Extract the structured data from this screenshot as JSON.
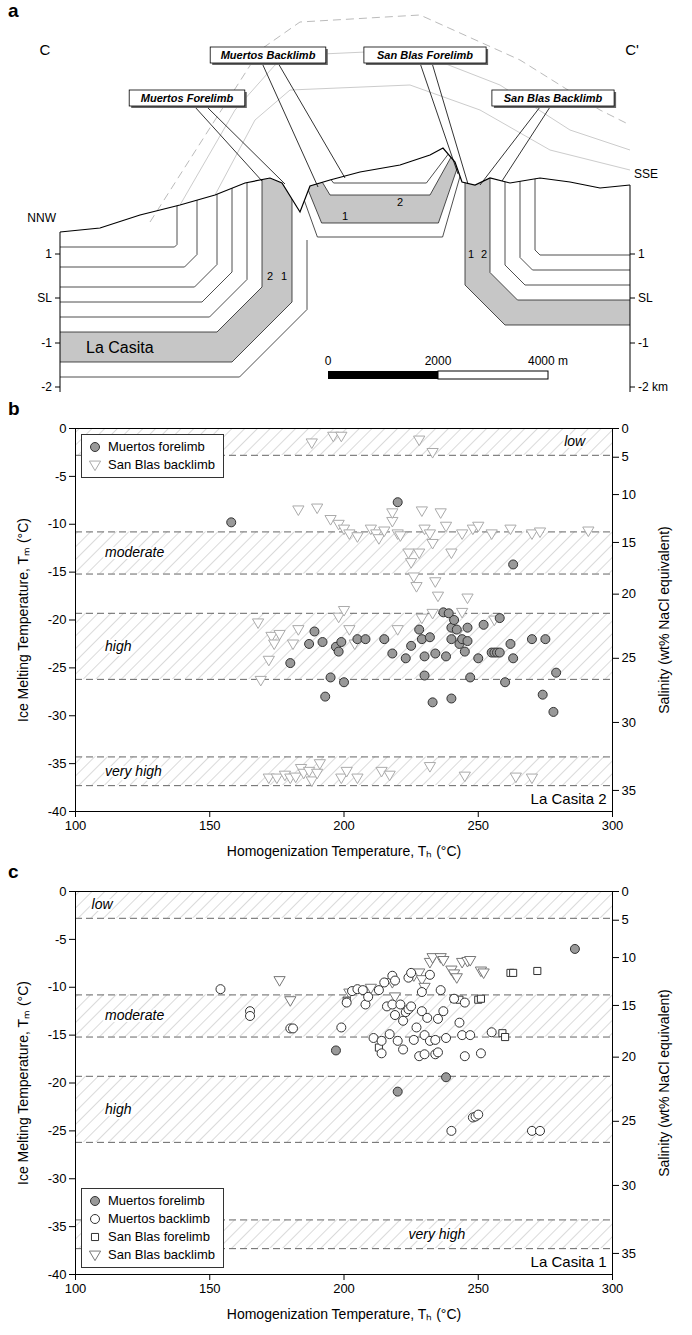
{
  "diagram": {
    "panel": "a",
    "section_ends": [
      "C",
      "C'"
    ],
    "directions": [
      "NNW",
      "SSE"
    ],
    "limb_labels": [
      "Muertos Forelimb",
      "Muertos Backlimb",
      "San Blas Forelimb",
      "San Blas Backlimb"
    ],
    "formation": "La Casita",
    "unit_labels": [
      "1",
      "2"
    ],
    "elevation_labels_left": [
      "1",
      "SL",
      "-1",
      "-2"
    ],
    "elevation_labels_right": [
      "1",
      "SL",
      "-1",
      "-2 km"
    ],
    "scale_bar_labels": [
      "0",
      "2000",
      "4000 m"
    ]
  },
  "chart_data": [
    {
      "panel": "b",
      "type": "scatter",
      "title": "La Casita 2",
      "x_label": "Homogenization Temperature, Tₕ (°C)",
      "y_label": "Ice Melting Temperature, Tₘ (°C)",
      "y2_label": "Salinity (wt% NaCl equivalent)",
      "xlim": [
        100,
        300
      ],
      "xticks": [
        100,
        150,
        200,
        250,
        300
      ],
      "ylim": [
        -40,
        0
      ],
      "yticks": [
        -40,
        -35,
        -30,
        -25,
        -20,
        -15,
        -10,
        -5,
        0
      ],
      "y2ticks": [
        0,
        5,
        10,
        15,
        20,
        25,
        30,
        35
      ],
      "y2tick_positions": [
        0,
        -3.0,
        -6.9,
        -11.9,
        -17.3,
        -24.0,
        -30.7,
        -37.8
      ],
      "salinity_classes": [
        {
          "name": "low",
          "range": [
            -2.8,
            0
          ],
          "label_x": 282
        },
        {
          "name": "moderate",
          "range": [
            -15.2,
            -10.8
          ],
          "label_x": 111
        },
        {
          "name": "high",
          "range": [
            -26.2,
            -19.3
          ],
          "label_x": 111
        },
        {
          "name": "very high",
          "range": [
            -37.3,
            -34.3
          ],
          "label_x": 111
        }
      ],
      "legend": "top-left",
      "series": [
        {
          "name": "Muertos forelimb",
          "color": "#999999",
          "marker": "filled-circle",
          "x": [
            158,
            220,
            263,
            180,
            187,
            189,
            192,
            193,
            195,
            197,
            198,
            199,
            200,
            205,
            208,
            215,
            218,
            223,
            225,
            228,
            229,
            230,
            230,
            233,
            234,
            237,
            239,
            240,
            240,
            240,
            241,
            242,
            243,
            244,
            245,
            246,
            246,
            247,
            250,
            252,
            255,
            256,
            257,
            258,
            258,
            260,
            262,
            263,
            270,
            274,
            275,
            278,
            279,
            238,
            232
          ],
          "y": [
            -9.8,
            -7.7,
            -14.2,
            -24.5,
            -22.5,
            -21.2,
            -22.3,
            -28,
            -26,
            -22.8,
            -23.3,
            -22.3,
            -26.5,
            -22,
            -22,
            -22,
            -23.5,
            -24,
            -22.7,
            -21,
            -22,
            -23.8,
            -25.8,
            -28.6,
            -23.5,
            -19.2,
            -19.3,
            -20.8,
            -22,
            -28.2,
            -20,
            -21,
            -22.5,
            -22,
            -23.3,
            -22.2,
            -20.8,
            -26,
            -24,
            -20.5,
            -23.4,
            -23.4,
            -23.4,
            -19.8,
            -23.4,
            -26.5,
            -22.5,
            -24,
            -22,
            -27.8,
            -22,
            -29.6,
            -25.5,
            -23.8,
            -21.8
          ]
        },
        {
          "name": "San Blas backlimb",
          "color": "#aaaaaa",
          "marker": "open-triangle-down",
          "x": [
            188,
            196,
            199,
            228,
            233,
            183,
            190,
            195,
            198,
            200,
            202,
            205,
            210,
            212,
            213,
            215,
            218,
            220,
            221,
            224,
            225,
            226,
            227,
            228,
            230,
            232,
            233,
            234,
            235,
            236,
            238,
            240,
            244,
            248,
            250,
            255,
            262,
            270,
            273,
            291,
            229,
            218,
            168,
            172,
            173,
            174,
            176,
            181,
            183,
            198,
            200,
            202,
            204,
            220,
            229,
            233,
            244,
            246,
            256,
            169,
            242,
            172,
            175,
            178,
            180,
            182,
            184,
            185,
            187,
            188,
            190,
            191,
            199,
            201,
            205,
            214,
            217,
            232,
            245,
            264,
            270
          ],
          "y": [
            -1.5,
            -0.8,
            -0.8,
            -1.2,
            -2.5,
            -8.5,
            -8.3,
            -9.5,
            -10,
            -10.5,
            -11,
            -11.3,
            -10.5,
            -11,
            -11.5,
            -10.7,
            -9.7,
            -11,
            -11.2,
            -13,
            -14,
            -15.5,
            -16.5,
            -13,
            -10.5,
            -11,
            -12,
            -16,
            -17.5,
            -8.8,
            -10.2,
            -13,
            -11,
            -10.5,
            -10.2,
            -11,
            -10.5,
            -11,
            -10.8,
            -10.7,
            -8.6,
            -8.8,
            -20.3,
            -24.2,
            -21.7,
            -22.5,
            -21.5,
            -22.5,
            -21,
            -19.7,
            -19,
            -21,
            -22.5,
            -21,
            -19.8,
            -19.3,
            -19.2,
            -17.7,
            -20,
            -26.3,
            -21.5,
            -36.5,
            -36.5,
            -36.2,
            -36.5,
            -36.4,
            -35.5,
            -36,
            -35.8,
            -36.8,
            -36,
            -35,
            -36.5,
            -35.8,
            -36.5,
            -35.8,
            -36.2,
            -35.3,
            -36.3,
            -36.4,
            -36.5
          ]
        }
      ]
    },
    {
      "panel": "c",
      "type": "scatter",
      "title": "La Casita 1",
      "x_label": "Homogenization Temperature, Tₕ (°C)",
      "y_label": "Ice Melting Temperature, Tₘ (°C)",
      "y2_label": "Salinity (wt% NaCl equivalent)",
      "xlim": [
        100,
        300
      ],
      "xticks": [
        100,
        150,
        200,
        250,
        300
      ],
      "ylim": [
        -40,
        0
      ],
      "yticks": [
        -40,
        -35,
        -30,
        -25,
        -20,
        -15,
        -10,
        -5,
        0
      ],
      "y2ticks": [
        0,
        5,
        10,
        15,
        20,
        25,
        30,
        35
      ],
      "y2tick_positions": [
        0,
        -3.0,
        -6.9,
        -11.9,
        -17.3,
        -24.0,
        -30.7,
        -37.8
      ],
      "salinity_classes": [
        {
          "name": "low",
          "range": [
            -2.8,
            0
          ],
          "label_x": 106
        },
        {
          "name": "moderate",
          "range": [
            -15.2,
            -10.8
          ],
          "label_x": 111
        },
        {
          "name": "high",
          "range": [
            -26.2,
            -19.3
          ],
          "label_x": 111
        },
        {
          "name": "very high",
          "range": [
            -37.3,
            -34.3
          ],
          "label_x": 224
        }
      ],
      "legend": "bottom-left",
      "series": [
        {
          "name": "Muertos forelimb",
          "color": "#999999",
          "marker": "filled-circle",
          "x": [
            197,
            220,
            238,
            286
          ],
          "y": [
            -16.6,
            -20.9,
            -19.4,
            -6.0
          ]
        },
        {
          "name": "Muertos backlimb",
          "color": "#333333",
          "marker": "open-circle",
          "x": [
            154,
            165,
            165,
            180,
            181,
            199,
            201,
            203,
            205,
            207,
            208,
            209,
            211,
            213,
            214,
            215,
            216,
            217,
            218,
            218,
            219,
            219,
            220,
            221,
            222,
            222,
            223,
            224,
            224,
            225,
            225,
            226,
            227,
            228,
            229,
            230,
            230,
            231,
            232,
            232,
            234,
            234,
            235,
            235,
            236,
            237,
            238,
            240,
            241,
            243,
            244,
            245,
            245,
            247,
            248,
            249,
            250,
            251,
            255,
            270,
            273,
            214,
            229
          ],
          "y": [
            -10.2,
            -12.5,
            -13,
            -14.3,
            -14.3,
            -14.2,
            -11.6,
            -10.4,
            -10.2,
            -10.3,
            -11.8,
            -11,
            -15.3,
            -10.3,
            -15.6,
            -9.5,
            -12,
            -14.9,
            -11.8,
            -8.8,
            -9.3,
            -12.9,
            -15.6,
            -11.8,
            -13.5,
            -16.5,
            -12.6,
            -12.3,
            -9,
            -12,
            -8.5,
            -15.5,
            -14.2,
            -17.2,
            -12.5,
            -15,
            -17,
            -13.2,
            -15.6,
            -8.7,
            -15.5,
            -17,
            -16.8,
            -13.3,
            -10.3,
            -12.5,
            -15.3,
            -25,
            -11.2,
            -13.7,
            -15,
            -17.2,
            -11.6,
            -15,
            -23.6,
            -23.5,
            -23.3,
            -16.9,
            -14.7,
            -25,
            -25,
            -16.9,
            -10.5
          ]
        },
        {
          "name": "San Blas forelimb",
          "color": "#333333",
          "marker": "open-square",
          "x": [
            201,
            213,
            241,
            243,
            250,
            251,
            259,
            260,
            262,
            263,
            272
          ],
          "y": [
            -11.4,
            -16.3,
            -11.2,
            -11.3,
            -11.3,
            -11.2,
            -14.8,
            -15.2,
            -8.5,
            -8.5,
            -8.3
          ]
        },
        {
          "name": "San Blas backlimb",
          "color": "#777777",
          "marker": "open-triangle-down",
          "x": [
            176,
            180,
            202,
            210,
            218,
            219,
            226,
            228,
            229,
            232,
            233,
            236,
            237,
            240,
            241,
            242,
            244,
            246,
            247,
            251,
            252,
            230
          ],
          "y": [
            -9.3,
            -11.4,
            -10.6,
            -10.1,
            -9.5,
            -11,
            -8.8,
            -8.5,
            -9.2,
            -7.4,
            -6.9,
            -6.9,
            -7.2,
            -8.2,
            -8.6,
            -9,
            -7.4,
            -7.3,
            -7.2,
            -8.3,
            -8.5,
            -10
          ]
        }
      ]
    }
  ]
}
